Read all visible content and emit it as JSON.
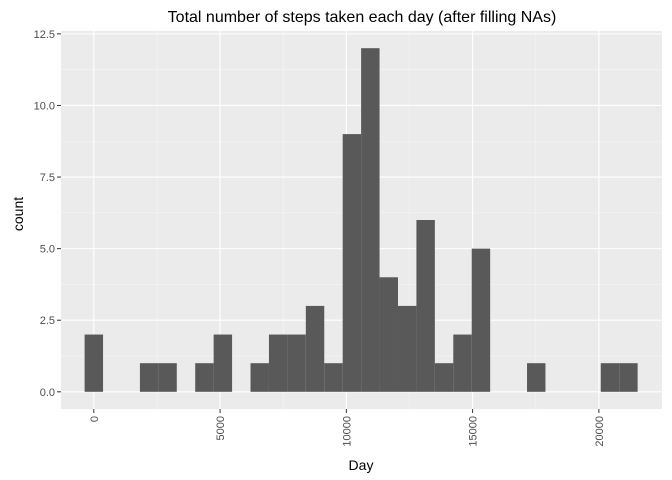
{
  "chart_data": {
    "type": "bar",
    "title": "Total number of steps taken each day (after filling NAs)",
    "xlabel": "Day",
    "ylabel": "count",
    "xlim": [
      -1300,
      22500
    ],
    "ylim": [
      -0.6,
      12.6
    ],
    "x_ticks": [
      0,
      5000,
      10000,
      15000,
      20000
    ],
    "x_tick_labels": [
      "0",
      "5000",
      "10000",
      "15000",
      "20000"
    ],
    "y_ticks": [
      0,
      2.5,
      5,
      7.5,
      10,
      12.5
    ],
    "y_tick_labels": [
      "0.0",
      "2.5",
      "5.0",
      "7.5",
      "10.0",
      "12.5"
    ],
    "bin_width": 730,
    "bins": [
      {
        "x0": -365,
        "x1": 365,
        "count": 2
      },
      {
        "x0": 365,
        "x1": 1095,
        "count": 0
      },
      {
        "x0": 1095,
        "x1": 1825,
        "count": 0
      },
      {
        "x0": 1825,
        "x1": 2555,
        "count": 1
      },
      {
        "x0": 2555,
        "x1": 3285,
        "count": 1
      },
      {
        "x0": 3285,
        "x1": 4015,
        "count": 0
      },
      {
        "x0": 4015,
        "x1": 4745,
        "count": 1
      },
      {
        "x0": 4745,
        "x1": 5475,
        "count": 2
      },
      {
        "x0": 5475,
        "x1": 6205,
        "count": 0
      },
      {
        "x0": 6205,
        "x1": 6935,
        "count": 1
      },
      {
        "x0": 6935,
        "x1": 7665,
        "count": 2
      },
      {
        "x0": 7665,
        "x1": 8395,
        "count": 2
      },
      {
        "x0": 8395,
        "x1": 9125,
        "count": 3
      },
      {
        "x0": 9125,
        "x1": 9855,
        "count": 1
      },
      {
        "x0": 9855,
        "x1": 10585,
        "count": 9
      },
      {
        "x0": 10585,
        "x1": 11315,
        "count": 12
      },
      {
        "x0": 11315,
        "x1": 12045,
        "count": 4
      },
      {
        "x0": 12045,
        "x1": 12775,
        "count": 3
      },
      {
        "x0": 12775,
        "x1": 13505,
        "count": 6
      },
      {
        "x0": 13505,
        "x1": 14235,
        "count": 1
      },
      {
        "x0": 14235,
        "x1": 14965,
        "count": 2
      },
      {
        "x0": 14965,
        "x1": 15695,
        "count": 5
      },
      {
        "x0": 15695,
        "x1": 16425,
        "count": 0
      },
      {
        "x0": 16425,
        "x1": 17155,
        "count": 0
      },
      {
        "x0": 17155,
        "x1": 17885,
        "count": 1
      },
      {
        "x0": 17885,
        "x1": 18615,
        "count": 0
      },
      {
        "x0": 18615,
        "x1": 19345,
        "count": 0
      },
      {
        "x0": 19345,
        "x1": 20075,
        "count": 0
      },
      {
        "x0": 20075,
        "x1": 20805,
        "count": 1
      },
      {
        "x0": 20805,
        "x1": 21535,
        "count": 1
      }
    ],
    "grid": true,
    "colors": {
      "panel_background": "#ebebeb",
      "grid_major": "#ffffff",
      "grid_minor": "#f5f5f5",
      "bar_fill": "#595959",
      "tick_text": "#4d4d4d",
      "tick_mark": "#333333"
    }
  }
}
